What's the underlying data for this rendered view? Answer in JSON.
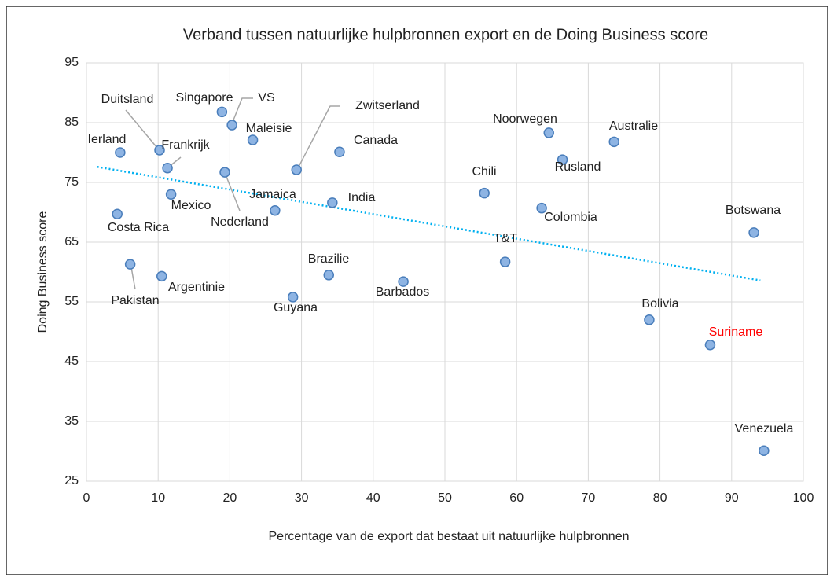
{
  "chart_data": {
    "type": "scatter",
    "title": "Verband tussen natuurlijke hulpbronnen export en de Doing Business score",
    "xlabel": "Percentage van de export dat bestaat uit natuurlijke hulpbronnen",
    "ylabel": "Doing Business score",
    "xlim": [
      0,
      100
    ],
    "xticks": [
      0,
      10,
      20,
      30,
      40,
      50,
      60,
      70,
      80,
      90,
      100
    ],
    "ylim": [
      25,
      95
    ],
    "yticks": [
      25,
      35,
      45,
      55,
      65,
      75,
      85,
      95
    ],
    "grid": true,
    "color": "#8eb4e3",
    "points": [
      {
        "name": "Ierland",
        "x": 4.7,
        "y": 80.0
      },
      {
        "name": "Duitsland",
        "x": 10.2,
        "y": 80.4
      },
      {
        "name": "Frankrijk",
        "x": 11.3,
        "y": 77.4
      },
      {
        "name": "Singapore",
        "x": 18.9,
        "y": 86.8
      },
      {
        "name": "VS",
        "x": 20.3,
        "y": 84.6
      },
      {
        "name": "Maleisie",
        "x": 23.2,
        "y": 82.1
      },
      {
        "name": "Nederland",
        "x": 19.3,
        "y": 76.7
      },
      {
        "name": "Zwitserland",
        "x": 29.3,
        "y": 77.1
      },
      {
        "name": "Canada",
        "x": 35.3,
        "y": 80.1
      },
      {
        "name": "Mexico",
        "x": 11.8,
        "y": 73.0
      },
      {
        "name": "Jamaica",
        "x": 26.3,
        "y": 70.3
      },
      {
        "name": "India",
        "x": 34.3,
        "y": 71.6
      },
      {
        "name": "Costa Rica",
        "x": 4.3,
        "y": 69.7
      },
      {
        "name": "Pakistan",
        "x": 6.1,
        "y": 61.3
      },
      {
        "name": "Argentinie",
        "x": 10.5,
        "y": 59.3
      },
      {
        "name": "Brazilie",
        "x": 33.8,
        "y": 59.5
      },
      {
        "name": "Guyana",
        "x": 28.8,
        "y": 55.8
      },
      {
        "name": "Barbados",
        "x": 44.2,
        "y": 58.4
      },
      {
        "name": "Chili",
        "x": 55.5,
        "y": 73.2
      },
      {
        "name": "T&T",
        "x": 58.4,
        "y": 61.7
      },
      {
        "name": "Colombia",
        "x": 63.5,
        "y": 70.7
      },
      {
        "name": "Noorwegen",
        "x": 64.5,
        "y": 83.3
      },
      {
        "name": "Rusland",
        "x": 66.4,
        "y": 78.8
      },
      {
        "name": "Australie",
        "x": 73.6,
        "y": 81.8
      },
      {
        "name": "Botswana",
        "x": 93.1,
        "y": 66.6
      },
      {
        "name": "Bolivia",
        "x": 78.5,
        "y": 52.0
      },
      {
        "name": "Suriname",
        "x": 87.0,
        "y": 47.8,
        "label_color": "#ff0000"
      },
      {
        "name": "Venezuela",
        "x": 94.5,
        "y": 30.1
      }
    ],
    "trendline": {
      "color": "#00b0f0",
      "x": [
        1.5,
        94
      ],
      "values": [
        77.6,
        58.6
      ]
    }
  }
}
